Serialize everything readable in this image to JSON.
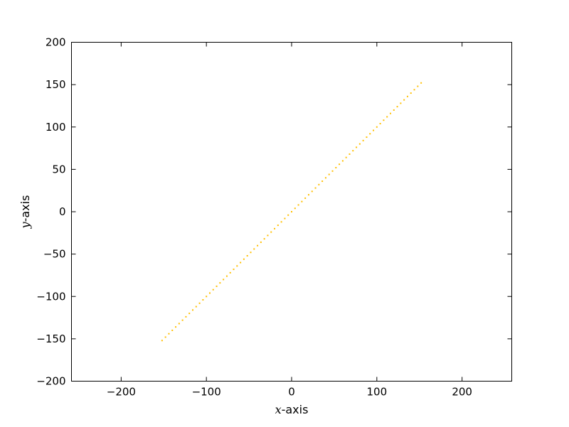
{
  "chart_data": {
    "type": "scatter",
    "title": "",
    "xlabel_var": "x",
    "xlabel_rest": "-axis",
    "ylabel_var": "y",
    "ylabel_rest": "-axis",
    "xlim": [
      -258.3,
      258.3
    ],
    "ylim": [
      -200,
      200
    ],
    "xticks": [
      -200,
      -100,
      0,
      100,
      200
    ],
    "yticks": [
      -200,
      -150,
      -100,
      -50,
      0,
      50,
      100,
      150,
      200
    ],
    "xtick_labels": [
      "−200",
      "−100",
      "0",
      "100",
      "200"
    ],
    "ytick_labels": [
      "−200",
      "−150",
      "−100",
      "−50",
      "0",
      "50",
      "100",
      "150",
      "200"
    ],
    "grid": false,
    "marker_color": "#ffbf00",
    "series": [
      {
        "x": [
          -152,
          -148,
          -144,
          -140,
          -136,
          -132,
          -128,
          -124,
          -120,
          -116,
          -112,
          -108,
          -104,
          -100,
          -96,
          -92,
          -88,
          -84,
          -80,
          -76,
          -72,
          -68,
          -64,
          -60,
          -56,
          -52,
          -48,
          -44,
          -40,
          -36,
          -32,
          -28,
          -24,
          -20,
          -16,
          -12,
          -8,
          -4,
          0,
          4,
          8,
          12,
          16,
          20,
          24,
          28,
          32,
          36,
          40,
          44,
          48,
          52,
          56,
          60,
          64,
          68,
          72,
          76,
          80,
          84,
          88,
          92,
          96,
          100,
          104,
          108,
          112,
          116,
          120,
          124,
          128,
          132,
          136,
          140,
          144,
          148,
          152
        ],
        "y": [
          -152,
          -148,
          -144,
          -140,
          -136,
          -132,
          -128,
          -124,
          -120,
          -116,
          -112,
          -108,
          -104,
          -100,
          -96,
          -92,
          -88,
          -84,
          -80,
          -76,
          -72,
          -68,
          -64,
          -60,
          -56,
          -52,
          -48,
          -44,
          -40,
          -36,
          -32,
          -28,
          -24,
          -20,
          -16,
          -12,
          -8,
          -4,
          0,
          4,
          8,
          12,
          16,
          20,
          24,
          28,
          32,
          36,
          40,
          44,
          48,
          52,
          56,
          60,
          64,
          68,
          72,
          76,
          80,
          84,
          88,
          92,
          96,
          100,
          104,
          108,
          112,
          116,
          120,
          124,
          128,
          132,
          136,
          140,
          144,
          148,
          152
        ]
      }
    ]
  }
}
